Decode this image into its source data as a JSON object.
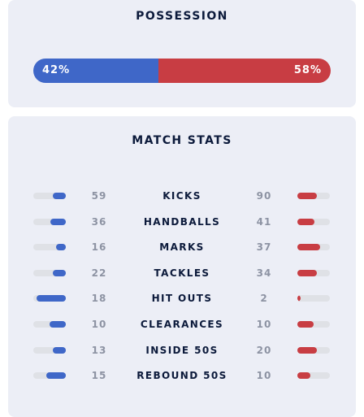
{
  "possession": {
    "title": "POSSESSION",
    "home_pct": 42,
    "away_pct": 58,
    "home_label": "42%",
    "away_label": "58%"
  },
  "match_stats": {
    "title": "MATCH STATS",
    "rows": [
      {
        "label": "KICKS",
        "home": "59",
        "away": "90"
      },
      {
        "label": "HANDBALLS",
        "home": "36",
        "away": "41"
      },
      {
        "label": "MARKS",
        "home": "16",
        "away": "37"
      },
      {
        "label": "TACKLES",
        "home": "22",
        "away": "34"
      },
      {
        "label": "HIT OUTS",
        "home": "18",
        "away": "2"
      },
      {
        "label": "CLEARANCES",
        "home": "10",
        "away": "10"
      },
      {
        "label": "INSIDE 50S",
        "home": "13",
        "away": "20"
      },
      {
        "label": "REBOUND 50S",
        "home": "15",
        "away": "10"
      }
    ]
  },
  "colors": {
    "home": "#3f67c8",
    "away": "#c83d43",
    "card_bg": "#eceef6"
  }
}
